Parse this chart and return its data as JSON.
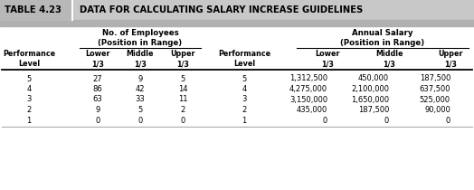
{
  "title_label": "TABLE 4.23",
  "title_text": "DATA FOR CALCULATING SALARY INCREASE GUIDELINES",
  "group1_header_line1": "No. of Employees",
  "group1_header_line2": "(Position in Range)",
  "group2_header_line1": "Annual Salary",
  "group2_header_line2": "(Position in Range)",
  "rows": [
    [
      "5",
      "27",
      "9",
      "5",
      "5",
      "1,312,500",
      "450,000",
      "187,500"
    ],
    [
      "4",
      "86",
      "42",
      "14",
      "4",
      "4,275,000",
      "2,100,000",
      "637,500"
    ],
    [
      "3",
      "63",
      "33",
      "11",
      "3",
      "3,150,000",
      "1,650,000",
      "525,000"
    ],
    [
      "2",
      "9",
      "5",
      "2",
      "2",
      "435,000",
      "187,500",
      "90,000"
    ],
    [
      "1",
      "0",
      "0",
      "0",
      "1",
      "0",
      "0",
      "0"
    ]
  ],
  "title_bg": "#c8c8c8",
  "separator_bg": "#b0b0b0",
  "fig_w": 5.24,
  "fig_h": 2.1,
  "dpi": 100
}
